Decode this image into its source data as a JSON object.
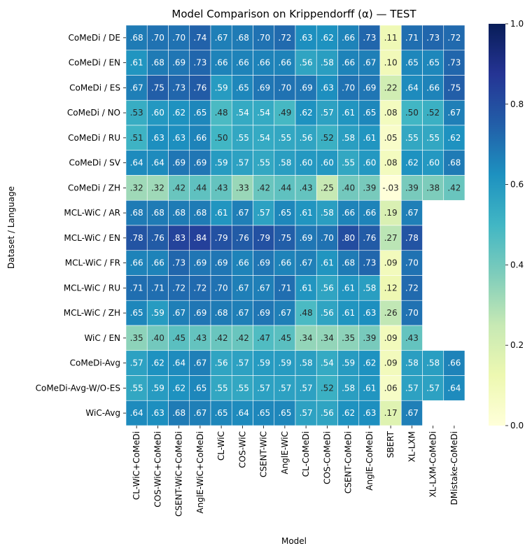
{
  "chart_data": {
    "type": "heatmap",
    "title": "Model Comparison on Krippendorff (α) — TEST",
    "xlabel": "Model",
    "ylabel": "Dataset / Language",
    "columns": [
      "CL-WiC+CoMeDi",
      "COS-WiC+CoMeDi",
      "CSENT-WiC+CoMeDi",
      "AnglE-WiC+CoMeDi",
      "CL-WiC",
      "COS-WiC",
      "CSENT-WiC",
      "AnglE-WiC",
      "CL-CoMeDi",
      "COS-CoMeDi",
      "CSENT-CoMeDi",
      "AnglE-CoMeDi",
      "SBERT",
      "XL-LXM",
      "XL-LXM-CoMeDi",
      "DMistake-CoMeDi"
    ],
    "rows": [
      "CoMeDi / DE",
      "CoMeDi / EN",
      "CoMeDi / ES",
      "CoMeDi / NO",
      "CoMeDi / RU",
      "CoMeDi / SV",
      "CoMeDi / ZH",
      "MCL-WiC / AR",
      "MCL-WiC / EN",
      "MCL-WiC / FR",
      "MCL-WiC / RU",
      "MCL-WiC / ZH",
      "WiC / EN",
      "CoMeDi-Avg",
      "CoMeDi-Avg-W/O-ES",
      "WiC-Avg"
    ],
    "values": [
      [
        0.68,
        0.7,
        0.7,
        0.74,
        0.67,
        0.68,
        0.7,
        0.72,
        0.63,
        0.62,
        0.66,
        0.73,
        0.11,
        0.71,
        0.73,
        0.72
      ],
      [
        0.61,
        0.68,
        0.69,
        0.73,
        0.66,
        0.66,
        0.66,
        0.66,
        0.56,
        0.58,
        0.66,
        0.67,
        0.1,
        0.65,
        0.65,
        0.73
      ],
      [
        0.67,
        0.75,
        0.73,
        0.76,
        0.59,
        0.65,
        0.69,
        0.7,
        0.69,
        0.63,
        0.7,
        0.69,
        0.22,
        0.64,
        0.66,
        0.75
      ],
      [
        0.53,
        0.6,
        0.62,
        0.65,
        0.48,
        0.54,
        0.54,
        0.49,
        0.62,
        0.57,
        0.61,
        0.65,
        0.08,
        0.5,
        0.52,
        0.67
      ],
      [
        0.51,
        0.63,
        0.63,
        0.66,
        0.5,
        0.55,
        0.54,
        0.55,
        0.56,
        0.52,
        0.58,
        0.61,
        0.05,
        0.55,
        0.55,
        0.62
      ],
      [
        0.64,
        0.64,
        0.69,
        0.69,
        0.59,
        0.57,
        0.55,
        0.58,
        0.6,
        0.6,
        0.55,
        0.6,
        0.08,
        0.62,
        0.6,
        0.68
      ],
      [
        0.32,
        0.32,
        0.42,
        0.44,
        0.43,
        0.33,
        0.42,
        0.44,
        0.43,
        0.25,
        0.4,
        0.39,
        -0.03,
        0.39,
        0.38,
        0.42
      ],
      [
        0.68,
        0.68,
        0.68,
        0.68,
        0.61,
        0.67,
        0.57,
        0.65,
        0.61,
        0.58,
        0.66,
        0.66,
        0.19,
        0.67,
        null,
        null
      ],
      [
        0.78,
        0.76,
        0.83,
        0.84,
        0.79,
        0.76,
        0.79,
        0.75,
        0.69,
        0.7,
        0.8,
        0.76,
        0.27,
        0.78,
        null,
        null
      ],
      [
        0.66,
        0.66,
        0.73,
        0.69,
        0.69,
        0.66,
        0.69,
        0.66,
        0.67,
        0.61,
        0.68,
        0.73,
        0.09,
        0.7,
        null,
        null
      ],
      [
        0.71,
        0.71,
        0.72,
        0.72,
        0.7,
        0.67,
        0.67,
        0.71,
        0.61,
        0.56,
        0.61,
        0.58,
        0.12,
        0.72,
        null,
        null
      ],
      [
        0.65,
        0.59,
        0.67,
        0.69,
        0.68,
        0.67,
        0.69,
        0.67,
        0.48,
        0.56,
        0.61,
        0.63,
        0.26,
        0.7,
        null,
        null
      ],
      [
        0.35,
        0.4,
        0.45,
        0.43,
        0.42,
        0.42,
        0.47,
        0.45,
        0.34,
        0.34,
        0.35,
        0.39,
        0.09,
        0.43,
        null,
        null
      ],
      [
        0.57,
        0.62,
        0.64,
        0.67,
        0.56,
        0.57,
        0.59,
        0.59,
        0.58,
        0.54,
        0.59,
        0.62,
        0.09,
        0.58,
        0.58,
        0.66
      ],
      [
        0.55,
        0.59,
        0.62,
        0.65,
        0.55,
        0.55,
        0.57,
        0.57,
        0.57,
        0.52,
        0.58,
        0.61,
        0.06,
        0.57,
        0.57,
        0.64
      ],
      [
        0.64,
        0.63,
        0.68,
        0.67,
        0.65,
        0.64,
        0.65,
        0.65,
        0.57,
        0.56,
        0.62,
        0.63,
        0.17,
        0.67,
        null,
        null
      ]
    ],
    "cell_labels": [
      [
        ".68",
        ".70",
        ".70",
        ".74",
        ".67",
        ".68",
        ".70",
        ".72",
        ".63",
        ".62",
        ".66",
        ".73",
        ".11",
        ".71",
        ".73",
        ".72"
      ],
      [
        ".61",
        ".68",
        ".69",
        ".73",
        ".66",
        ".66",
        ".66",
        ".66",
        ".56",
        ".58",
        ".66",
        ".67",
        ".10",
        ".65",
        ".65",
        ".73"
      ],
      [
        ".67",
        ".75",
        ".73",
        ".76",
        ".59",
        ".65",
        ".69",
        ".70",
        ".69",
        ".63",
        ".70",
        ".69",
        ".22",
        ".64",
        ".66",
        ".75"
      ],
      [
        ".53",
        ".60",
        ".62",
        ".65",
        ".48",
        ".54",
        ".54",
        ".49",
        ".62",
        ".57",
        ".61",
        ".65",
        ".08",
        ".50",
        ".52",
        ".67"
      ],
      [
        ".51",
        ".63",
        ".63",
        ".66",
        ".50",
        ".55",
        ".54",
        ".55",
        ".56",
        ".52",
        ".58",
        ".61",
        ".05",
        ".55",
        ".55",
        ".62"
      ],
      [
        ".64",
        ".64",
        ".69",
        ".69",
        ".59",
        ".57",
        ".55",
        ".58",
        ".60",
        ".60",
        ".55",
        ".60",
        ".08",
        ".62",
        ".60",
        ".68"
      ],
      [
        ".32",
        ".32",
        ".42",
        ".44",
        ".43",
        ".33",
        ".42",
        ".44",
        ".43",
        ".25",
        ".40",
        ".39",
        "-.03",
        ".39",
        ".38",
        ".42"
      ],
      [
        ".68",
        ".68",
        ".68",
        ".68",
        ".61",
        ".67",
        ".57",
        ".65",
        ".61",
        ".58",
        ".66",
        ".66",
        ".19",
        ".67",
        null,
        null
      ],
      [
        ".78",
        ".76",
        ".83",
        ".84",
        ".79",
        ".76",
        ".79",
        ".75",
        ".69",
        ".70",
        ".80",
        ".76",
        ".27",
        ".78",
        null,
        null
      ],
      [
        ".66",
        ".66",
        ".73",
        ".69",
        ".69",
        ".66",
        ".69",
        ".66",
        ".67",
        ".61",
        ".68",
        ".73",
        ".09",
        ".70",
        null,
        null
      ],
      [
        ".71",
        ".71",
        ".72",
        ".72",
        ".70",
        ".67",
        ".67",
        ".71",
        ".61",
        ".56",
        ".61",
        ".58",
        ".12",
        ".72",
        null,
        null
      ],
      [
        ".65",
        ".59",
        ".67",
        ".69",
        ".68",
        ".67",
        ".69",
        ".67",
        ".48",
        ".56",
        ".61",
        ".63",
        ".26",
        ".70",
        null,
        null
      ],
      [
        ".35",
        ".40",
        ".45",
        ".43",
        ".42",
        ".42",
        ".47",
        ".45",
        ".34",
        ".34",
        ".35",
        ".39",
        ".09",
        ".43",
        null,
        null
      ],
      [
        ".57",
        ".62",
        ".64",
        ".67",
        ".56",
        ".57",
        ".59",
        ".59",
        ".58",
        ".54",
        ".59",
        ".62",
        ".09",
        ".58",
        ".58",
        ".66"
      ],
      [
        ".55",
        ".59",
        ".62",
        ".65",
        ".55",
        ".55",
        ".57",
        ".57",
        ".57",
        ".52",
        ".58",
        ".61",
        ".06",
        ".57",
        ".57",
        ".64"
      ],
      [
        ".64",
        ".63",
        ".68",
        ".67",
        ".65",
        ".64",
        ".65",
        ".65",
        ".57",
        ".56",
        ".62",
        ".63",
        ".17",
        ".67",
        null,
        null
      ]
    ],
    "colormap": "YlGnBu",
    "vmin": 0.0,
    "vmax": 1.0,
    "colorbar_ticks": [
      0.0,
      0.2,
      0.4,
      0.6,
      0.8,
      1.0
    ],
    "colorbar_tick_labels": [
      "0.0",
      "0.2",
      "0.4",
      "0.6",
      "0.8",
      "1.0"
    ]
  }
}
